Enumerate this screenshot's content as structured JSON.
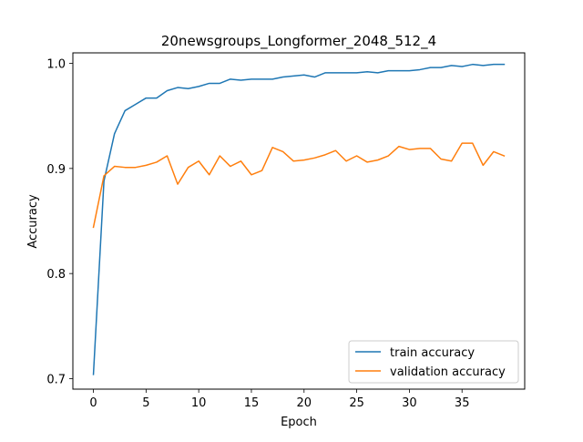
{
  "chart_data": {
    "type": "line",
    "title": "20newsgroups_Longformer_2048_512_4",
    "xlabel": "Epoch",
    "ylabel": "Accuracy",
    "xlim": [
      -1.95,
      40.95
    ],
    "ylim": [
      0.69,
      1.01
    ],
    "xticks": [
      0,
      5,
      10,
      15,
      20,
      25,
      30,
      35
    ],
    "xtick_labels": [
      "0",
      "5",
      "10",
      "15",
      "20",
      "25",
      "30",
      "35"
    ],
    "yticks": [
      0.7,
      0.8,
      0.9,
      1.0
    ],
    "ytick_labels": [
      "0.7",
      "0.8",
      "0.9",
      "1.0"
    ],
    "grid": false,
    "legend_position": "lower-right",
    "x": [
      0,
      1,
      2,
      3,
      4,
      5,
      6,
      7,
      8,
      9,
      10,
      11,
      12,
      13,
      14,
      15,
      16,
      17,
      18,
      19,
      20,
      21,
      22,
      23,
      24,
      25,
      26,
      27,
      28,
      29,
      30,
      31,
      32,
      33,
      34,
      35,
      36,
      37,
      38,
      39
    ],
    "series": [
      {
        "name": "train accuracy",
        "color": "#1f77b4",
        "values": [
          0.704,
          0.888,
          0.933,
          0.955,
          0.961,
          0.967,
          0.967,
          0.974,
          0.977,
          0.976,
          0.978,
          0.981,
          0.981,
          0.985,
          0.984,
          0.985,
          0.985,
          0.985,
          0.987,
          0.988,
          0.989,
          0.987,
          0.991,
          0.991,
          0.991,
          0.991,
          0.992,
          0.991,
          0.993,
          0.993,
          0.993,
          0.994,
          0.996,
          0.996,
          0.998,
          0.997,
          0.999,
          0.998,
          0.999,
          0.999
        ]
      },
      {
        "name": "validation accuracy",
        "color": "#ff7f0e",
        "values": [
          0.844,
          0.893,
          0.902,
          0.901,
          0.901,
          0.903,
          0.906,
          0.912,
          0.885,
          0.901,
          0.907,
          0.894,
          0.912,
          0.902,
          0.907,
          0.894,
          0.898,
          0.92,
          0.916,
          0.907,
          0.908,
          0.91,
          0.913,
          0.917,
          0.907,
          0.912,
          0.906,
          0.908,
          0.912,
          0.921,
          0.918,
          0.919,
          0.919,
          0.909,
          0.907,
          0.924,
          0.924,
          0.903,
          0.916,
          0.912
        ]
      }
    ]
  }
}
